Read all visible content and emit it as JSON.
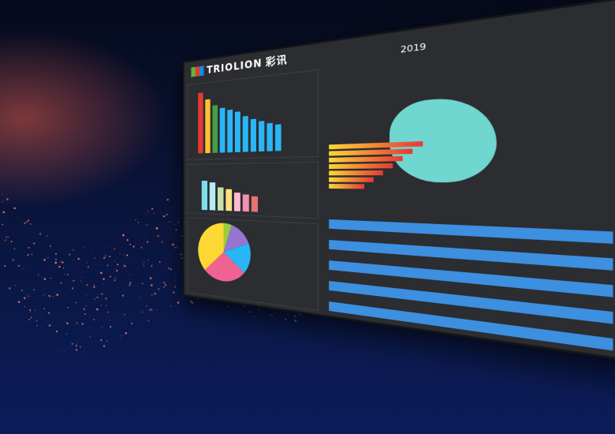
{
  "brand": {
    "logo_text": "TRIOLION",
    "logo_cn": "彩讯"
  },
  "dashboard": {
    "title": "2019",
    "bar_chart_1": {
      "colors": [
        "#e53935",
        "#fbc02d",
        "#43a047",
        "#29b6f6",
        "#29b6f6",
        "#29b6f6",
        "#29b6f6",
        "#29b6f6",
        "#29b6f6",
        "#29b6f6",
        "#29b6f6"
      ],
      "values": [
        100,
        88,
        78,
        72,
        68,
        64,
        56,
        51,
        47,
        43,
        40
      ]
    },
    "bar_chart_2": {
      "colors": [
        "#80deea",
        "#b2ebf2",
        "#c5e1a5",
        "#ffe082",
        "#f8bbd0",
        "#f48fb1",
        "#e57373"
      ],
      "values": [
        80,
        75,
        62,
        58,
        48,
        44,
        40
      ]
    },
    "pie": {
      "slices": [
        {
          "value": 5,
          "color": "#9ccc3a"
        },
        {
          "value": 14,
          "color": "#9575cd"
        },
        {
          "value": 17,
          "color": "#29b6f6"
        },
        {
          "value": 27,
          "color": "#f06292"
        },
        {
          "value": 37,
          "color": "#fdd835"
        }
      ]
    },
    "gauges": [
      {
        "color": "#29b6f6"
      },
      {
        "color": "#fdd835"
      },
      {
        "color": "#f48fb1"
      }
    ],
    "table_rows": 10
  }
}
